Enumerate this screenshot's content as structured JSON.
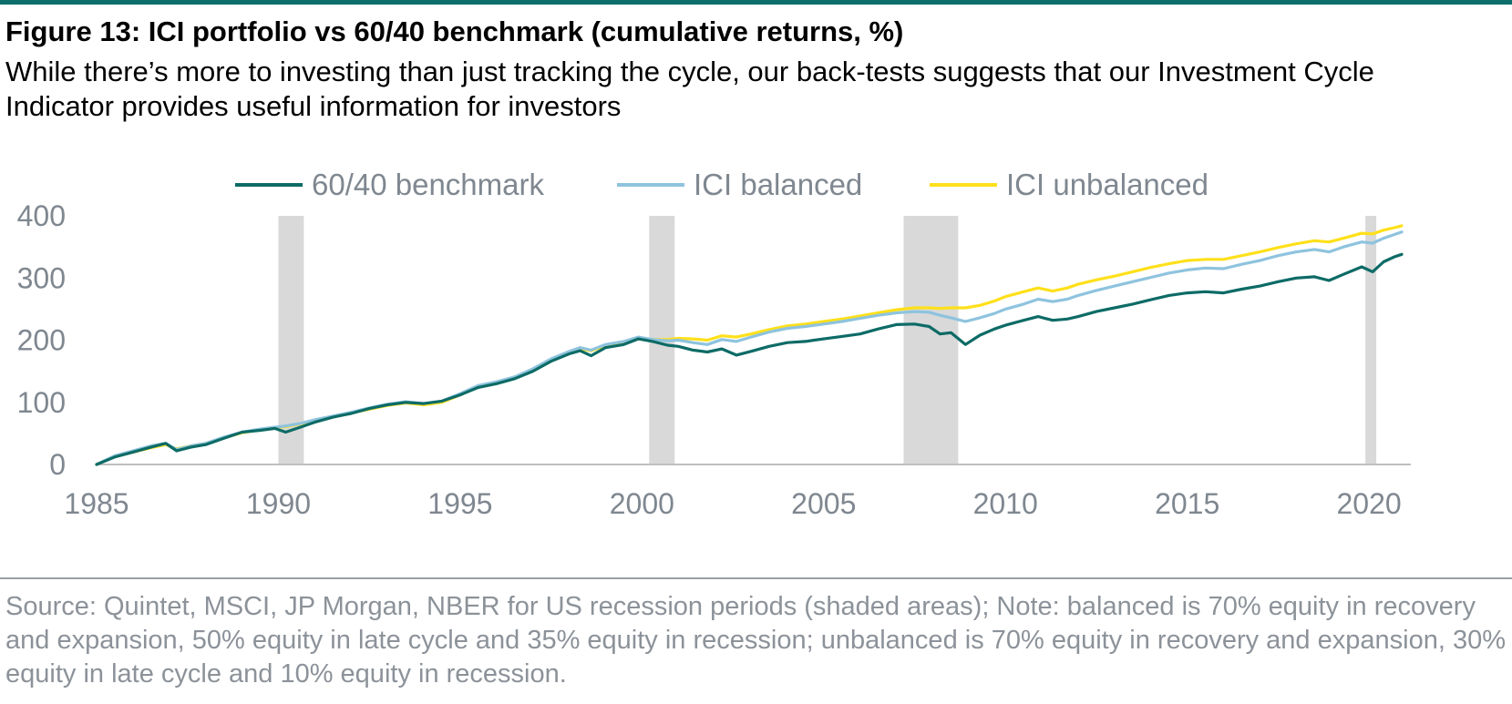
{
  "figure": {
    "title": "Figure 13: ICI portfolio vs 60/40 benchmark (cumulative returns, %)",
    "subtitle": "While there’s more to investing than just tracking the cycle, our back-tests suggests that our Investment Cycle Indicator provides useful information for investors",
    "source": "Source: Quintet, MSCI, JP Morgan, NBER for US recession periods (shaded areas); Note: balanced is 70% equity in recovery and expansion, 50% equity in late cycle and 35% equity in recession; unbalanced is 70% equity in recovery and expansion, 30% equity in late cycle and 10% equity in recession."
  },
  "colors": {
    "benchmark": "#0d6b66",
    "balanced": "#8ec3de",
    "unbalanced": "#ffe01a",
    "recession": "#d9d9d9",
    "axis": "#bfbfbf",
    "text": "#7f8790"
  },
  "chart_data": {
    "type": "line",
    "xlim": [
      1985,
      2020.9
    ],
    "ylim": [
      0,
      400
    ],
    "x_ticks": [
      1985,
      1990,
      1995,
      2000,
      2005,
      2010,
      2015,
      2020
    ],
    "y_ticks": [
      0,
      100,
      200,
      300,
      400
    ],
    "grid": false,
    "legend_position": "top",
    "recessions": [
      [
        1990.0,
        1990.7
      ],
      [
        2000.2,
        2000.9
      ],
      [
        2007.2,
        2008.7
      ],
      [
        2019.9,
        2020.2
      ]
    ],
    "series": [
      {
        "name": "60/40 benchmark",
        "color": "#0d6b66",
        "points": [
          [
            1985.0,
            0
          ],
          [
            1985.5,
            12
          ],
          [
            1986.0,
            20
          ],
          [
            1986.5,
            28
          ],
          [
            1986.9,
            34
          ],
          [
            1987.2,
            22
          ],
          [
            1987.6,
            28
          ],
          [
            1988.0,
            32
          ],
          [
            1988.5,
            42
          ],
          [
            1989.0,
            52
          ],
          [
            1989.5,
            55
          ],
          [
            1989.9,
            58
          ],
          [
            1990.2,
            52
          ],
          [
            1990.6,
            60
          ],
          [
            1991.0,
            68
          ],
          [
            1991.5,
            76
          ],
          [
            1992.0,
            82
          ],
          [
            1992.5,
            90
          ],
          [
            1993.0,
            96
          ],
          [
            1993.5,
            100
          ],
          [
            1994.0,
            98
          ],
          [
            1994.5,
            102
          ],
          [
            1995.0,
            112
          ],
          [
            1995.5,
            124
          ],
          [
            1996.0,
            130
          ],
          [
            1996.5,
            138
          ],
          [
            1997.0,
            150
          ],
          [
            1997.5,
            166
          ],
          [
            1998.0,
            178
          ],
          [
            1998.3,
            183
          ],
          [
            1998.6,
            175
          ],
          [
            1999.0,
            188
          ],
          [
            1999.5,
            193
          ],
          [
            1999.9,
            202
          ],
          [
            2000.3,
            198
          ],
          [
            2000.7,
            192
          ],
          [
            2001.0,
            190
          ],
          [
            2001.4,
            184
          ],
          [
            2001.8,
            181
          ],
          [
            2002.2,
            186
          ],
          [
            2002.6,
            176
          ],
          [
            2003.0,
            182
          ],
          [
            2003.5,
            190
          ],
          [
            2004.0,
            196
          ],
          [
            2004.5,
            198
          ],
          [
            2005.0,
            202
          ],
          [
            2005.5,
            206
          ],
          [
            2006.0,
            210
          ],
          [
            2006.5,
            218
          ],
          [
            2007.0,
            225
          ],
          [
            2007.5,
            226
          ],
          [
            2007.9,
            222
          ],
          [
            2008.2,
            210
          ],
          [
            2008.5,
            212
          ],
          [
            2008.9,
            193
          ],
          [
            2009.3,
            208
          ],
          [
            2009.7,
            218
          ],
          [
            2010.0,
            224
          ],
          [
            2010.5,
            232
          ],
          [
            2010.9,
            238
          ],
          [
            2011.3,
            232
          ],
          [
            2011.7,
            234
          ],
          [
            2012.0,
            238
          ],
          [
            2012.5,
            246
          ],
          [
            2013.0,
            252
          ],
          [
            2013.5,
            258
          ],
          [
            2014.0,
            265
          ],
          [
            2014.5,
            272
          ],
          [
            2015.0,
            276
          ],
          [
            2015.5,
            278
          ],
          [
            2016.0,
            276
          ],
          [
            2016.5,
            282
          ],
          [
            2017.0,
            287
          ],
          [
            2017.5,
            294
          ],
          [
            2018.0,
            300
          ],
          [
            2018.5,
            302
          ],
          [
            2018.9,
            296
          ],
          [
            2019.3,
            306
          ],
          [
            2019.8,
            318
          ],
          [
            2020.1,
            310
          ],
          [
            2020.4,
            326
          ],
          [
            2020.7,
            334
          ],
          [
            2020.9,
            338
          ]
        ]
      },
      {
        "name": "ICI balanced",
        "color": "#8ec3de",
        "points": [
          [
            1985.0,
            0
          ],
          [
            1985.5,
            14
          ],
          [
            1986.0,
            22
          ],
          [
            1986.5,
            30
          ],
          [
            1986.9,
            34
          ],
          [
            1987.2,
            24
          ],
          [
            1987.6,
            30
          ],
          [
            1988.0,
            34
          ],
          [
            1988.5,
            44
          ],
          [
            1989.0,
            52
          ],
          [
            1989.5,
            57
          ],
          [
            1989.9,
            60
          ],
          [
            1990.2,
            62
          ],
          [
            1990.6,
            66
          ],
          [
            1991.0,
            72
          ],
          [
            1991.5,
            78
          ],
          [
            1992.0,
            84
          ],
          [
            1992.5,
            91
          ],
          [
            1993.0,
            97
          ],
          [
            1993.5,
            101
          ],
          [
            1994.0,
            98
          ],
          [
            1994.5,
            102
          ],
          [
            1995.0,
            114
          ],
          [
            1995.5,
            127
          ],
          [
            1996.0,
            133
          ],
          [
            1996.5,
            141
          ],
          [
            1997.0,
            154
          ],
          [
            1997.5,
            170
          ],
          [
            1998.0,
            182
          ],
          [
            1998.3,
            188
          ],
          [
            1998.6,
            184
          ],
          [
            1999.0,
            193
          ],
          [
            1999.5,
            198
          ],
          [
            1999.9,
            205
          ],
          [
            2000.3,
            201
          ],
          [
            2000.7,
            199
          ],
          [
            2001.0,
            200
          ],
          [
            2001.4,
            196
          ],
          [
            2001.8,
            193
          ],
          [
            2002.2,
            201
          ],
          [
            2002.6,
            198
          ],
          [
            2003.0,
            205
          ],
          [
            2003.5,
            213
          ],
          [
            2004.0,
            219
          ],
          [
            2004.5,
            222
          ],
          [
            2005.0,
            226
          ],
          [
            2005.5,
            230
          ],
          [
            2006.0,
            235
          ],
          [
            2006.5,
            240
          ],
          [
            2007.0,
            244
          ],
          [
            2007.5,
            246
          ],
          [
            2007.9,
            245
          ],
          [
            2008.2,
            240
          ],
          [
            2008.5,
            236
          ],
          [
            2008.9,
            230
          ],
          [
            2009.3,
            236
          ],
          [
            2009.7,
            243
          ],
          [
            2010.0,
            250
          ],
          [
            2010.5,
            258
          ],
          [
            2010.9,
            266
          ],
          [
            2011.3,
            262
          ],
          [
            2011.7,
            266
          ],
          [
            2012.0,
            272
          ],
          [
            2012.5,
            280
          ],
          [
            2013.0,
            287
          ],
          [
            2013.5,
            294
          ],
          [
            2014.0,
            301
          ],
          [
            2014.5,
            308
          ],
          [
            2015.0,
            313
          ],
          [
            2015.5,
            316
          ],
          [
            2016.0,
            315
          ],
          [
            2016.5,
            322
          ],
          [
            2017.0,
            328
          ],
          [
            2017.5,
            336
          ],
          [
            2018.0,
            342
          ],
          [
            2018.5,
            346
          ],
          [
            2018.9,
            342
          ],
          [
            2019.3,
            350
          ],
          [
            2019.8,
            358
          ],
          [
            2020.1,
            356
          ],
          [
            2020.4,
            364
          ],
          [
            2020.7,
            370
          ],
          [
            2020.9,
            374
          ]
        ]
      },
      {
        "name": "ICI unbalanced",
        "color": "#ffe01a",
        "points": [
          [
            1985.0,
            0
          ],
          [
            1985.5,
            13
          ],
          [
            1986.0,
            20
          ],
          [
            1986.5,
            27
          ],
          [
            1986.9,
            32
          ],
          [
            1987.2,
            25
          ],
          [
            1987.6,
            30
          ],
          [
            1988.0,
            34
          ],
          [
            1988.5,
            43
          ],
          [
            1989.0,
            51
          ],
          [
            1989.5,
            56
          ],
          [
            1989.9,
            59
          ],
          [
            1990.2,
            61
          ],
          [
            1990.6,
            65
          ],
          [
            1991.0,
            71
          ],
          [
            1991.5,
            77
          ],
          [
            1992.0,
            83
          ],
          [
            1992.5,
            89
          ],
          [
            1993.0,
            95
          ],
          [
            1993.5,
            99
          ],
          [
            1994.0,
            96
          ],
          [
            1994.5,
            100
          ],
          [
            1995.0,
            112
          ],
          [
            1995.5,
            125
          ],
          [
            1996.0,
            131
          ],
          [
            1996.5,
            139
          ],
          [
            1997.0,
            152
          ],
          [
            1997.5,
            168
          ],
          [
            1998.0,
            180
          ],
          [
            1998.3,
            186
          ],
          [
            1998.6,
            183
          ],
          [
            1999.0,
            191
          ],
          [
            1999.5,
            196
          ],
          [
            1999.9,
            202
          ],
          [
            2000.3,
            201
          ],
          [
            2000.7,
            201
          ],
          [
            2001.0,
            203
          ],
          [
            2001.4,
            202
          ],
          [
            2001.8,
            200
          ],
          [
            2002.2,
            207
          ],
          [
            2002.6,
            205
          ],
          [
            2003.0,
            210
          ],
          [
            2003.5,
            217
          ],
          [
            2004.0,
            223
          ],
          [
            2004.5,
            226
          ],
          [
            2005.0,
            230
          ],
          [
            2005.5,
            234
          ],
          [
            2006.0,
            239
          ],
          [
            2006.5,
            244
          ],
          [
            2007.0,
            249
          ],
          [
            2007.5,
            252
          ],
          [
            2007.9,
            252
          ],
          [
            2008.2,
            251
          ],
          [
            2008.5,
            252
          ],
          [
            2008.9,
            252
          ],
          [
            2009.3,
            256
          ],
          [
            2009.7,
            263
          ],
          [
            2010.0,
            270
          ],
          [
            2010.5,
            278
          ],
          [
            2010.9,
            284
          ],
          [
            2011.3,
            279
          ],
          [
            2011.7,
            284
          ],
          [
            2012.0,
            290
          ],
          [
            2012.5,
            297
          ],
          [
            2013.0,
            303
          ],
          [
            2013.5,
            310
          ],
          [
            2014.0,
            317
          ],
          [
            2014.5,
            323
          ],
          [
            2015.0,
            328
          ],
          [
            2015.5,
            330
          ],
          [
            2016.0,
            330
          ],
          [
            2016.5,
            336
          ],
          [
            2017.0,
            342
          ],
          [
            2017.5,
            349
          ],
          [
            2018.0,
            355
          ],
          [
            2018.5,
            360
          ],
          [
            2018.9,
            358
          ],
          [
            2019.3,
            364
          ],
          [
            2019.8,
            372
          ],
          [
            2020.1,
            371
          ],
          [
            2020.4,
            377
          ],
          [
            2020.7,
            381
          ],
          [
            2020.9,
            384
          ]
        ]
      }
    ]
  }
}
